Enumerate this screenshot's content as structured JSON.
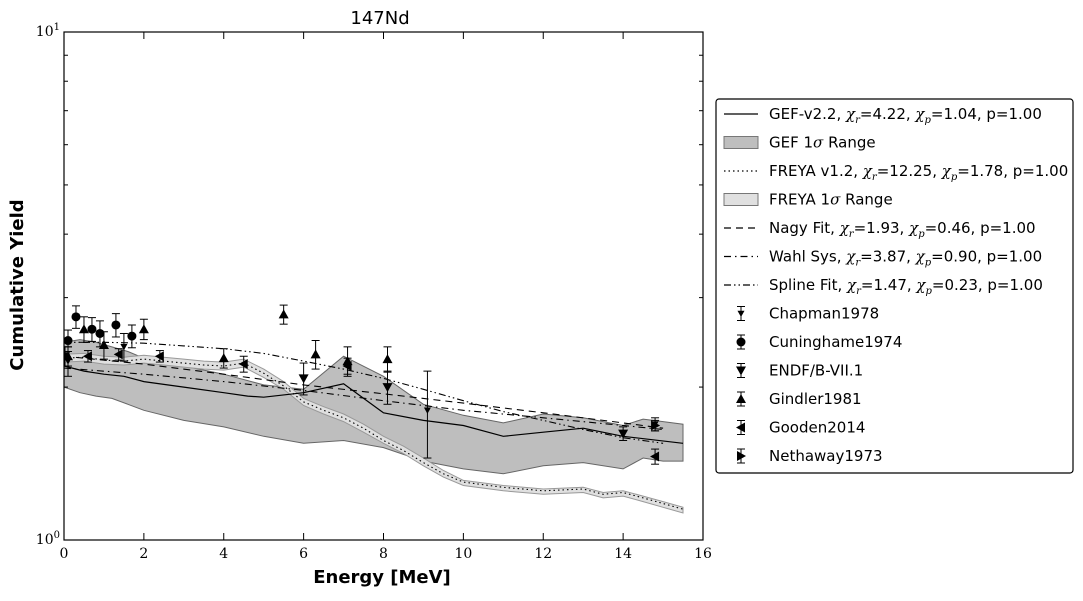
{
  "chart_data": {
    "type": "line",
    "title": "147Nd",
    "xlabel": "Energy [MeV]",
    "ylabel": "Cumulative Yield",
    "xlim": [
      0,
      16
    ],
    "ylim": [
      1,
      10
    ],
    "yscale": "log",
    "x_ticks": [
      "0",
      "2",
      "4",
      "6",
      "8",
      "10",
      "12",
      "14",
      "16"
    ],
    "y_ticks": [
      {
        "base": "10",
        "exp": "0",
        "value": 1
      },
      {
        "base": "10",
        "exp": "1",
        "value": 10
      }
    ],
    "grid": false,
    "legend_position": "right",
    "legend": [
      {
        "kind": "line",
        "style": "solid",
        "text": "GEF-v2.2, χr=4.22, χp=1.04, p=1.00",
        "label_parts": [
          "GEF-v2.2, ",
          "χ",
          "r",
          "=4.22, ",
          "χ",
          "p",
          "=1.04, p=1.00"
        ]
      },
      {
        "kind": "patch",
        "fill": "#bebebe",
        "text": "GEF 1σ Range",
        "label_parts": [
          "GEF 1",
          "σ",
          " Range"
        ]
      },
      {
        "kind": "line",
        "style": "dotted",
        "text": "FREYA v1.2, χr=12.25, χp=1.78, p=1.00",
        "label_parts": [
          "FREYA v1.2, ",
          "χ",
          "r",
          "=12.25, ",
          "χ",
          "p",
          "=1.78, p=1.00"
        ]
      },
      {
        "kind": "patch",
        "fill": "#e0e0e0",
        "text": "FREYA 1σ Range",
        "label_parts": [
          "FREYA 1",
          "σ",
          " Range"
        ]
      },
      {
        "kind": "line",
        "style": "dashed",
        "text": "Nagy Fit, χr=1.93, χp=0.46, p=1.00",
        "label_parts": [
          "Nagy Fit, ",
          "χ",
          "r",
          "=1.93, ",
          "χ",
          "p",
          "=0.46, p=1.00"
        ]
      },
      {
        "kind": "line",
        "style": "dashdot",
        "text": "Wahl Sys, χr=3.87, χp=0.90, p=1.00",
        "label_parts": [
          "Wahl Sys, ",
          "χ",
          "r",
          "=3.87, ",
          "χ",
          "p",
          "=0.90, p=1.00"
        ]
      },
      {
        "kind": "line",
        "style": "dashdotdot",
        "text": "Spline Fit, χr=1.47, χp=0.23, p=1.00",
        "label_parts": [
          "Spline Fit, ",
          "χ",
          "r",
          "=1.47, ",
          "χ",
          "p",
          "=0.23, p=1.00"
        ]
      },
      {
        "kind": "marker",
        "marker": "tri_down_small",
        "text": "Chapman1978",
        "label_parts": [
          "Chapman1978"
        ]
      },
      {
        "kind": "marker",
        "marker": "circle",
        "text": "Cuninghame1974",
        "label_parts": [
          "Cuninghame1974"
        ]
      },
      {
        "kind": "marker",
        "marker": "tri_down",
        "text": "ENDF/B-VII.1",
        "label_parts": [
          "ENDF/B-VII.1"
        ]
      },
      {
        "kind": "marker",
        "marker": "tri_up",
        "text": "Gindler1981",
        "label_parts": [
          "Gindler1981"
        ]
      },
      {
        "kind": "marker",
        "marker": "tri_left",
        "text": "Gooden2014",
        "label_parts": [
          "Gooden2014"
        ]
      },
      {
        "kind": "marker",
        "marker": "tri_right",
        "text": "Nethaway1973",
        "label_parts": [
          "Nethaway1973"
        ]
      }
    ],
    "bands": [
      {
        "name": "GEF 1σ Range",
        "fill": "#bebebe",
        "stroke": "#666666",
        "x": [
          0,
          0.4,
          0.8,
          1.2,
          1.6,
          2,
          3,
          4,
          5,
          6,
          7,
          8,
          9,
          10,
          11,
          12,
          13,
          14,
          14.5,
          15,
          15.5
        ],
        "upper": [
          2.45,
          2.48,
          2.45,
          2.4,
          2.35,
          2.28,
          2.2,
          2.12,
          2.02,
          1.98,
          2.3,
          2.1,
          1.85,
          1.76,
          1.7,
          1.77,
          1.74,
          1.68,
          1.73,
          1.71,
          1.69
        ],
        "lower": [
          2.0,
          1.95,
          1.92,
          1.9,
          1.85,
          1.8,
          1.72,
          1.67,
          1.6,
          1.55,
          1.57,
          1.52,
          1.43,
          1.38,
          1.35,
          1.4,
          1.42,
          1.38,
          1.45,
          1.43,
          1.43
        ]
      },
      {
        "name": "FREYA 1σ Range",
        "fill": "#e0e0e0",
        "stroke": "#999999",
        "x": [
          0,
          0.5,
          1,
          1.5,
          2,
          2.5,
          3,
          3.5,
          4,
          4.5,
          5,
          5.5,
          6,
          6.5,
          7,
          7.5,
          8,
          8.5,
          9,
          9.5,
          10,
          11,
          12,
          13,
          13.5,
          14,
          14.5,
          15,
          15.5
        ],
        "upper": [
          2.32,
          2.33,
          2.3,
          2.29,
          2.31,
          2.29,
          2.27,
          2.25,
          2.24,
          2.27,
          2.17,
          2.05,
          1.9,
          1.83,
          1.77,
          1.69,
          1.6,
          1.53,
          1.45,
          1.37,
          1.31,
          1.28,
          1.26,
          1.27,
          1.24,
          1.25,
          1.22,
          1.19,
          1.16
        ],
        "lower": [
          2.24,
          2.25,
          2.22,
          2.21,
          2.23,
          2.21,
          2.19,
          2.17,
          2.16,
          2.19,
          2.09,
          1.98,
          1.84,
          1.77,
          1.71,
          1.63,
          1.55,
          1.48,
          1.4,
          1.33,
          1.28,
          1.25,
          1.23,
          1.24,
          1.21,
          1.22,
          1.19,
          1.16,
          1.13
        ]
      }
    ],
    "series": [
      {
        "name": "GEF-v2.2",
        "style": "solid",
        "x": [
          0,
          0.5,
          1,
          1.5,
          2,
          3,
          4,
          4.6,
          5,
          6,
          7,
          8,
          9,
          10,
          11,
          12,
          13,
          14,
          15.5
        ],
        "y": [
          2.2,
          2.15,
          2.12,
          2.1,
          2.05,
          2.0,
          1.95,
          1.92,
          1.91,
          1.95,
          2.03,
          1.78,
          1.72,
          1.68,
          1.6,
          1.63,
          1.66,
          1.6,
          1.55
        ]
      },
      {
        "name": "FREYA v1.2",
        "style": "dotted",
        "x": [
          0,
          0.5,
          1,
          1.5,
          2,
          2.5,
          3,
          3.5,
          4,
          4.5,
          5,
          5.5,
          6,
          6.5,
          7,
          7.5,
          8,
          8.5,
          9,
          9.5,
          10,
          11,
          12,
          13,
          13.5,
          14,
          14.5,
          15,
          15.5
        ],
        "y": [
          2.28,
          2.29,
          2.26,
          2.25,
          2.27,
          2.25,
          2.23,
          2.21,
          2.2,
          2.23,
          2.13,
          2.01,
          1.87,
          1.8,
          1.74,
          1.66,
          1.57,
          1.5,
          1.42,
          1.35,
          1.3,
          1.27,
          1.25,
          1.26,
          1.23,
          1.24,
          1.21,
          1.18,
          1.15
        ]
      },
      {
        "name": "Nagy Fit",
        "style": "dashed",
        "x": [
          0,
          2,
          4,
          6,
          8,
          10,
          12,
          14,
          15
        ],
        "y": [
          2.3,
          2.22,
          2.12,
          2.02,
          1.94,
          1.86,
          1.78,
          1.7,
          1.66
        ]
      },
      {
        "name": "Wahl Sys",
        "style": "dashdot",
        "x": [
          0,
          2,
          4,
          6,
          8,
          10,
          12,
          14,
          15
        ],
        "y": [
          2.18,
          2.12,
          2.05,
          1.97,
          1.88,
          1.8,
          1.74,
          1.68,
          1.65
        ]
      },
      {
        "name": "Spline Fit",
        "style": "dashdotdot",
        "x": [
          0,
          1,
          2,
          3,
          4,
          5,
          6,
          7,
          8,
          9,
          10,
          11,
          12,
          13,
          14,
          15
        ],
        "y": [
          2.45,
          2.45,
          2.44,
          2.41,
          2.38,
          2.33,
          2.25,
          2.17,
          2.08,
          1.98,
          1.88,
          1.79,
          1.72,
          1.65,
          1.59,
          1.55
        ]
      }
    ],
    "points": [
      {
        "name": "Chapman1978",
        "marker": "tri_down_small",
        "x": [
          0.1,
          1.5,
          9.1,
          14.8
        ],
        "y": [
          2.25,
          2.4,
          1.8,
          1.69
        ],
        "err": [
          0.15,
          0.15,
          0.35,
          0.05
        ]
      },
      {
        "name": "Cuninghame1974",
        "marker": "circle",
        "x": [
          0.1,
          0.3,
          0.7,
          0.9,
          1.3,
          1.7
        ],
        "y": [
          2.47,
          2.75,
          2.6,
          2.55,
          2.65,
          2.52
        ],
        "err": [
          0.12,
          0.14,
          0.14,
          0.15,
          0.14,
          0.13
        ]
      },
      {
        "name": "ENDF/B-VII.1",
        "marker": "tri_down",
        "x": [
          0.0253,
          6.0,
          8.1,
          14.0
        ],
        "y": [
          2.3,
          2.08,
          2.0,
          1.62
        ],
        "err": [
          0.1,
          0.15,
          0.15,
          0.05
        ]
      },
      {
        "name": "Gindler1981",
        "marker": "tri_up",
        "x": [
          0.1,
          0.5,
          1.0,
          2.0,
          4.0,
          5.5,
          6.3,
          7.1,
          8.1
        ],
        "y": [
          2.3,
          2.6,
          2.42,
          2.6,
          2.28,
          2.78,
          2.32,
          2.25,
          2.27
        ],
        "err": [
          0.1,
          0.15,
          0.15,
          0.12,
          0.1,
          0.12,
          0.15,
          0.15,
          0.13
        ]
      },
      {
        "name": "Gooden2014",
        "marker": "tri_left",
        "x": [
          0.6,
          1.37,
          2.4,
          4.5,
          7.1,
          14.8
        ],
        "y": [
          2.3,
          2.32,
          2.3,
          2.22,
          2.2,
          1.46
        ],
        "err": [
          0.06,
          0.06,
          0.06,
          0.08,
          0.08,
          0.05
        ]
      },
      {
        "name": "Nethaway1973",
        "marker": "tri_right",
        "x": [
          14.8
        ],
        "y": [
          1.68
        ],
        "err": [
          0.04
        ]
      }
    ]
  }
}
